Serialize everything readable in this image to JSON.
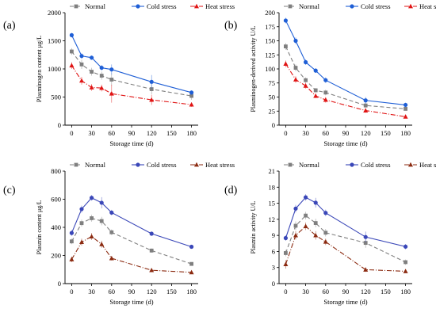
{
  "chart_data": [
    {
      "panel": "(a)",
      "type": "line",
      "xlabel": "Storage time (d)",
      "ylabel": "Plasminogen content  μg/L",
      "xlim": [
        -10,
        190
      ],
      "ylim": [
        0,
        2000
      ],
      "x_ticks": [
        0,
        30,
        60,
        90,
        120,
        150,
        180
      ],
      "y_ticks": [
        0,
        500,
        1000,
        1500,
        2000
      ],
      "x": [
        0,
        15,
        30,
        45,
        60,
        120,
        180
      ],
      "series": [
        {
          "name": "Normal",
          "color": "#7f7f7f",
          "marker": "square",
          "dash": "5,3",
          "values": [
            1310,
            1080,
            950,
            880,
            810,
            640,
            520
          ],
          "errors": [
            60,
            80,
            70,
            70,
            110,
            90,
            70
          ]
        },
        {
          "name": "Cold stress",
          "color": "#1f5fd6",
          "marker": "circle",
          "dash": "",
          "values": [
            1600,
            1230,
            1200,
            1020,
            990,
            770,
            580
          ],
          "errors": [
            40,
            50,
            40,
            50,
            90,
            120,
            40
          ]
        },
        {
          "name": "Heat stress",
          "color": "#e01414",
          "marker": "triangle",
          "dash": "6,2,1,2",
          "values": [
            1060,
            790,
            670,
            660,
            560,
            450,
            365
          ],
          "errors": [
            60,
            70,
            60,
            60,
            160,
            90,
            40
          ]
        }
      ]
    },
    {
      "panel": "(b)",
      "type": "line",
      "xlabel": "Storage time (d)",
      "ylabel": "Plasminogen-derived activity  U/L",
      "xlim": [
        -10,
        190
      ],
      "ylim": [
        0,
        200
      ],
      "x_ticks": [
        0,
        30,
        60,
        90,
        120,
        150,
        180
      ],
      "y_ticks": [
        0,
        25,
        50,
        75,
        100,
        125,
        150,
        175,
        200
      ],
      "x": [
        0,
        15,
        30,
        45,
        60,
        120,
        180
      ],
      "series": [
        {
          "name": "Normal",
          "color": "#7f7f7f",
          "marker": "square",
          "dash": "5,3",
          "values": [
            140,
            102,
            80,
            62,
            58,
            35,
            29
          ],
          "errors": [
            6,
            6,
            5,
            4,
            5,
            4,
            3
          ]
        },
        {
          "name": "Cold stress",
          "color": "#1f5fd6",
          "marker": "circle",
          "dash": "",
          "values": [
            186,
            150,
            112,
            97,
            80,
            44,
            36
          ],
          "errors": [
            5,
            6,
            5,
            4,
            5,
            6,
            4
          ]
        },
        {
          "name": "Heat stress",
          "color": "#e01414",
          "marker": "triangle",
          "dash": "6,2,1,2",
          "values": [
            109,
            81,
            70,
            52,
            45,
            26,
            15
          ],
          "errors": [
            6,
            6,
            5,
            4,
            5,
            4,
            3
          ]
        }
      ]
    },
    {
      "panel": "(c)",
      "type": "line",
      "xlabel": "Storage time (d)",
      "ylabel": "Plasmin content  μg/L",
      "xlim": [
        -10,
        190
      ],
      "ylim": [
        0,
        800
      ],
      "x_ticks": [
        0,
        30,
        60,
        90,
        120,
        150,
        180
      ],
      "y_ticks": [
        0,
        200,
        400,
        600,
        800
      ],
      "x": [
        0,
        15,
        30,
        45,
        60,
        120,
        180
      ],
      "series": [
        {
          "name": "Normal",
          "color": "#7f7f7f",
          "marker": "square",
          "dash": "5,3",
          "values": [
            300,
            430,
            465,
            445,
            365,
            235,
            140
          ],
          "errors": [
            20,
            25,
            25,
            30,
            20,
            15,
            12
          ]
        },
        {
          "name": "Cold stress",
          "color": "#3a47b8",
          "marker": "circle",
          "dash": "",
          "values": [
            360,
            530,
            610,
            575,
            505,
            355,
            262
          ],
          "errors": [
            20,
            25,
            20,
            40,
            20,
            15,
            12
          ]
        },
        {
          "name": "Heat stress",
          "color": "#8b2a10",
          "marker": "triangle",
          "dash": "6,2,1,2",
          "values": [
            172,
            295,
            335,
            280,
            180,
            95,
            80
          ],
          "errors": [
            20,
            25,
            25,
            25,
            15,
            12,
            10
          ]
        }
      ]
    },
    {
      "panel": "(d)",
      "type": "line",
      "xlabel": "Storage time (d)",
      "ylabel": "Plasmin activity  U/L",
      "xlim": [
        -10,
        190
      ],
      "ylim": [
        0,
        21
      ],
      "x_ticks": [
        0,
        30,
        60,
        90,
        120,
        150,
        180
      ],
      "y_ticks": [
        0,
        3,
        6,
        9,
        12,
        15,
        18,
        21
      ],
      "x": [
        0,
        15,
        30,
        45,
        60,
        120,
        180
      ],
      "series": [
        {
          "name": "Normal",
          "color": "#7f7f7f",
          "marker": "square",
          "dash": "5,3",
          "values": [
            5.7,
            10.8,
            12.7,
            11.3,
            9.5,
            7.6,
            4.0
          ],
          "errors": [
            0.6,
            0.8,
            0.7,
            0.8,
            0.7,
            0.9,
            0.5
          ]
        },
        {
          "name": "Cold stress",
          "color": "#3a47b8",
          "marker": "circle",
          "dash": "",
          "values": [
            8.5,
            14.0,
            16.1,
            15.1,
            13.2,
            8.7,
            6.9
          ],
          "errors": [
            0.5,
            0.7,
            0.6,
            0.9,
            0.6,
            1.0,
            0.5
          ]
        },
        {
          "name": "Heat stress",
          "color": "#8b2a10",
          "marker": "triangle",
          "dash": "6,2,1,2",
          "values": [
            3.6,
            9.0,
            10.7,
            9.0,
            7.8,
            2.6,
            2.3
          ],
          "errors": [
            0.8,
            0.8,
            0.7,
            0.8,
            0.6,
            0.4,
            0.3
          ]
        }
      ]
    }
  ]
}
